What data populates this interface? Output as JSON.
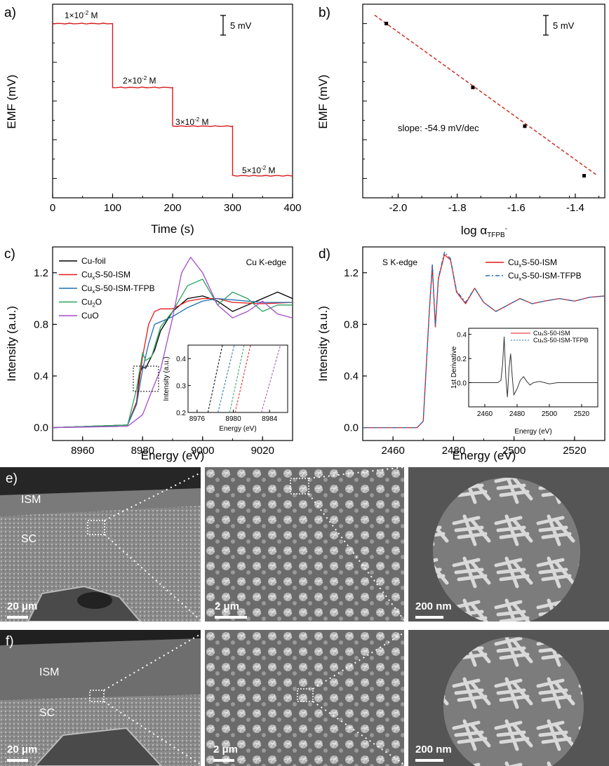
{
  "panels": {
    "a": {
      "label": "a)",
      "xlabel": "Time (s)",
      "ylabel": "EMF (mV)",
      "xticks": [
        "0",
        "100",
        "200",
        "300",
        "400"
      ],
      "scalebar": "5 mV",
      "steps": [
        {
          "label_base": "1×10",
          "label_exp": "-2",
          "label_unit": " M",
          "t0": 0,
          "t1": 100,
          "emf": 0
        },
        {
          "label_base": "2×10",
          "label_exp": "-2",
          "label_unit": " M",
          "t0": 100,
          "t1": 200,
          "emf": -16.5
        },
        {
          "label_base": "3×10",
          "label_exp": "-2",
          "label_unit": " M",
          "t0": 200,
          "t1": 300,
          "emf": -26.5
        },
        {
          "label_base": "5×10",
          "label_exp": "-2",
          "label_unit": " M",
          "t0": 300,
          "t1": 400,
          "emf": -39.3
        }
      ]
    },
    "b": {
      "label": "b)",
      "xlabel_base": "log α",
      "xlabel_sub": "TFPB",
      "xlabel_sup": "-",
      "ylabel": "EMF (mV)",
      "xticks": [
        "-2.0",
        "-1.8",
        "-1.6",
        "-1.4"
      ],
      "scalebar": "5 mV",
      "slope_text": "slope: -54.9 mV/dec",
      "points": [
        {
          "x": -2.04,
          "y": 0
        },
        {
          "x": -1.747,
          "y": -16.5
        },
        {
          "x": -1.571,
          "y": -26.5
        },
        {
          "x": -1.37,
          "y": -39.3
        }
      ],
      "fit": {
        "x0": -2.08,
        "x1": -1.33,
        "slope": -54.9
      }
    },
    "c": {
      "label": "c)",
      "xlabel": "Energy (eV)",
      "ylabel": "Intensity (a.u.)",
      "title": "Cu K-edge",
      "xticks": [
        "8960",
        "8980",
        "9000",
        "9020"
      ],
      "yticks": [
        "0.0",
        "0.4",
        "0.8",
        "1.2"
      ],
      "legend": [
        {
          "base": "Cu-foil",
          "sub": "",
          "rest": "",
          "color": "#000000"
        },
        {
          "base": "Cu",
          "sub": "x",
          "rest": "S-50-ISM",
          "color": "#e41a1c"
        },
        {
          "base": "Cu",
          "sub": "x",
          "rest": "S-50-ISM-TFPB",
          "color": "#1f6fb4"
        },
        {
          "base": "Cu",
          "sub": "2",
          "rest": "O",
          "color": "#2ca25f"
        },
        {
          "base": "CuO",
          "sub": "",
          "rest": "",
          "color": "#a64cc8"
        }
      ],
      "inset": {
        "xlabel": "Energy (eV)",
        "ylabel": "Intensity (a.u.)",
        "xticks": [
          "8976",
          "8980",
          "8984"
        ],
        "yticks": [
          "0.2",
          "0.3",
          "0.4"
        ]
      }
    },
    "d": {
      "label": "d)",
      "xlabel": "Energy (eV)",
      "ylabel": "Intensity (a.u.)",
      "title": "S K-edge",
      "xticks": [
        "2460",
        "2480",
        "2500",
        "2520"
      ],
      "yticks": [
        "0.0",
        "0.4",
        "0.8",
        "1.2"
      ],
      "legend": [
        {
          "base": "Cu",
          "sub": "x",
          "rest": "S-50-ISM",
          "color": "#e41a1c"
        },
        {
          "base": "Cu",
          "sub": "x",
          "rest": "S-50-ISM-TFPB",
          "color": "#1f6fb4"
        }
      ],
      "inset": {
        "xlabel": "Energy (eV)",
        "ylabel": "1st Derivative",
        "xticks": [
          "2460",
          "2480",
          "2500",
          "2520"
        ],
        "yticks": [
          "0.0",
          "0.2",
          "0.4"
        ],
        "legend": [
          "CuₓS-50-ISM",
          "CuₓS-50-ISM-TFPB"
        ]
      }
    }
  },
  "chart_data": [
    {
      "type": "line",
      "panel": "a",
      "x": [
        0,
        100,
        100,
        200,
        200,
        300,
        300,
        400
      ],
      "series": [
        {
          "values": [
            0,
            0,
            -16.5,
            -16.5,
            -26.5,
            -26.5,
            -39.3,
            -39.3
          ]
        }
      ],
      "xlim": [
        0,
        400
      ],
      "xlabel": "Time (s)",
      "ylabel": "EMF (mV)"
    },
    {
      "type": "scatter",
      "panel": "b",
      "x": [
        -2.04,
        -1.747,
        -1.571,
        -1.37
      ],
      "series": [
        {
          "values": [
            0,
            -16.5,
            -26.5,
            -39.3
          ]
        }
      ],
      "xlabel": "log α TFPB-",
      "ylabel": "EMF (mV)",
      "annotation": "slope: -54.9 mV/dec"
    },
    {
      "type": "line",
      "panel": "c",
      "xlim": [
        8950,
        9030
      ],
      "ylim": [
        -0.1,
        1.4
      ],
      "xlabel": "Energy (eV)",
      "ylabel": "Intensity (a.u.)",
      "series": [
        {
          "name": "Cu-foil",
          "x": [
            8950,
            8975,
            8978,
            8979,
            8980,
            8981,
            8984,
            8986,
            8990,
            8995,
            9000,
            9005,
            9010,
            9015,
            9020,
            9025,
            9030
          ],
          "values": [
            0,
            0.02,
            0.2,
            0.42,
            0.47,
            0.46,
            0.6,
            0.75,
            0.9,
            1.0,
            1.02,
            0.98,
            0.9,
            0.95,
            1.0,
            1.05,
            1.0
          ]
        },
        {
          "name": "CuxS-50-ISM",
          "x": [
            8950,
            8975,
            8978,
            8980,
            8982,
            8984,
            8986,
            8990,
            8995,
            9000,
            9005,
            9010,
            9020,
            9030
          ],
          "values": [
            0,
            0.02,
            0.2,
            0.55,
            0.8,
            0.9,
            0.92,
            0.92,
            0.98,
            1.0,
            1.0,
            0.97,
            0.96,
            0.97
          ]
        },
        {
          "name": "CuxS-50-ISM-TFPB",
          "x": [
            8950,
            8975,
            8978,
            8980,
            8982,
            8984,
            8986,
            8990,
            8995,
            9000,
            9005,
            9010,
            9020,
            9030
          ],
          "values": [
            0,
            0.02,
            0.18,
            0.45,
            0.65,
            0.8,
            0.82,
            0.86,
            0.93,
            0.98,
            1.0,
            0.99,
            0.97,
            0.97
          ]
        },
        {
          "name": "Cu2O",
          "x": [
            8950,
            8975,
            8978,
            8980,
            8981,
            8983,
            8986,
            8990,
            8995,
            9000,
            9005,
            9010,
            9015,
            9020,
            9025,
            9030
          ],
          "values": [
            0,
            0.02,
            0.3,
            0.58,
            0.52,
            0.55,
            0.78,
            0.9,
            1.1,
            1.15,
            0.95,
            1.05,
            1.0,
            0.9,
            0.95,
            0.95
          ]
        },
        {
          "name": "CuO",
          "x": [
            8950,
            8975,
            8980,
            8983,
            8986,
            8990,
            8993,
            8996,
            9000,
            9005,
            9010,
            9015,
            9020,
            9025,
            9030
          ],
          "values": [
            0,
            0.01,
            0.1,
            0.28,
            0.45,
            0.85,
            1.2,
            1.32,
            1.2,
            0.95,
            0.85,
            0.9,
            0.98,
            0.88,
            0.85
          ]
        }
      ]
    },
    {
      "type": "line",
      "panel": "d",
      "xlim": [
        2450,
        2530
      ],
      "ylim": [
        -0.1,
        1.4
      ],
      "xlabel": "Energy (eV)",
      "ylabel": "Intensity (a.u.)",
      "series": [
        {
          "name": "CuxS-50-ISM",
          "x": [
            2450,
            2468,
            2470,
            2472,
            2473,
            2474,
            2475,
            2477,
            2479,
            2481,
            2484,
            2487,
            2490,
            2494,
            2498,
            2502,
            2506,
            2510,
            2515,
            2520,
            2525,
            2530
          ],
          "values": [
            0,
            0,
            0.05,
            0.9,
            1.25,
            0.78,
            1.15,
            1.34,
            1.3,
            1.05,
            0.96,
            1.08,
            0.97,
            0.9,
            0.95,
            1.0,
            0.96,
            0.98,
            1.0,
            0.98,
            1.01,
            1.02
          ]
        },
        {
          "name": "CuxS-50-ISM-TFPB",
          "x": [
            2450,
            2468,
            2470,
            2472,
            2473,
            2474,
            2475,
            2477,
            2479,
            2481,
            2484,
            2487,
            2490,
            2494,
            2498,
            2502,
            2506,
            2510,
            2515,
            2520,
            2525,
            2530
          ],
          "values": [
            0,
            0,
            0.05,
            0.9,
            1.27,
            0.79,
            1.16,
            1.36,
            1.31,
            1.06,
            0.97,
            1.08,
            0.97,
            0.9,
            0.95,
            1.0,
            0.96,
            0.98,
            1.0,
            0.98,
            1.01,
            1.02
          ]
        }
      ]
    }
  ],
  "sem": {
    "e": {
      "label": "e)",
      "ism": "ISM",
      "sc": "SC",
      "scales": [
        "20 μm",
        "2 μm",
        "200 nm"
      ]
    },
    "f": {
      "label": "f)",
      "ism": "ISM",
      "sc": "SC",
      "scales": [
        "20 μm",
        "2 μm",
        "200 nm"
      ]
    }
  }
}
